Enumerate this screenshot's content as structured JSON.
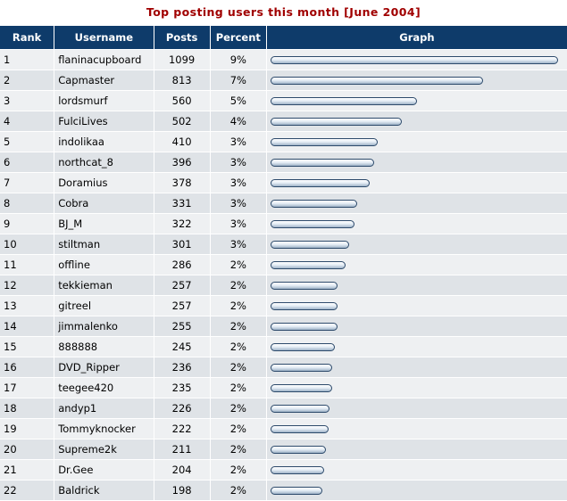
{
  "page": {
    "title": "Top posting users this month [June 2004]"
  },
  "table": {
    "headers": {
      "rank": "Rank",
      "username": "Username",
      "posts": "Posts",
      "percent": "Percent",
      "graph": "Graph"
    },
    "max_posts": 1099,
    "rows": [
      {
        "rank": "1",
        "username": "flaninacupboard",
        "posts": "1099",
        "percent": "9%"
      },
      {
        "rank": "2",
        "username": "Capmaster",
        "posts": "813",
        "percent": "7%"
      },
      {
        "rank": "3",
        "username": "lordsmurf",
        "posts": "560",
        "percent": "5%"
      },
      {
        "rank": "4",
        "username": "FulciLives",
        "posts": "502",
        "percent": "4%"
      },
      {
        "rank": "5",
        "username": "indolikaa",
        "posts": "410",
        "percent": "3%"
      },
      {
        "rank": "6",
        "username": "northcat_8",
        "posts": "396",
        "percent": "3%"
      },
      {
        "rank": "7",
        "username": "Doramius",
        "posts": "378",
        "percent": "3%"
      },
      {
        "rank": "8",
        "username": "Cobra",
        "posts": "331",
        "percent": "3%"
      },
      {
        "rank": "9",
        "username": "BJ_M",
        "posts": "322",
        "percent": "3%"
      },
      {
        "rank": "10",
        "username": "stiltman",
        "posts": "301",
        "percent": "3%"
      },
      {
        "rank": "11",
        "username": "offline",
        "posts": "286",
        "percent": "2%"
      },
      {
        "rank": "12",
        "username": "tekkieman",
        "posts": "257",
        "percent": "2%"
      },
      {
        "rank": "13",
        "username": "gitreel",
        "posts": "257",
        "percent": "2%"
      },
      {
        "rank": "14",
        "username": "jimmalenko",
        "posts": "255",
        "percent": "2%"
      },
      {
        "rank": "15",
        "username": "888888",
        "posts": "245",
        "percent": "2%"
      },
      {
        "rank": "16",
        "username": "DVD_Ripper",
        "posts": "236",
        "percent": "2%"
      },
      {
        "rank": "17",
        "username": "teegee420",
        "posts": "235",
        "percent": "2%"
      },
      {
        "rank": "18",
        "username": "andyp1",
        "posts": "226",
        "percent": "2%"
      },
      {
        "rank": "19",
        "username": "Tommyknocker",
        "posts": "222",
        "percent": "2%"
      },
      {
        "rank": "20",
        "username": "Supreme2k",
        "posts": "211",
        "percent": "2%"
      },
      {
        "rank": "21",
        "username": "Dr.Gee",
        "posts": "204",
        "percent": "2%"
      },
      {
        "rank": "22",
        "username": "Baldrick",
        "posts": "198",
        "percent": "2%"
      }
    ]
  },
  "colors": {
    "title": "#a00000",
    "header_bg": "#0e3b6a",
    "username_link": "#1a2f8a",
    "row_odd": "#eef0f2",
    "row_even": "#dfe3e7"
  }
}
